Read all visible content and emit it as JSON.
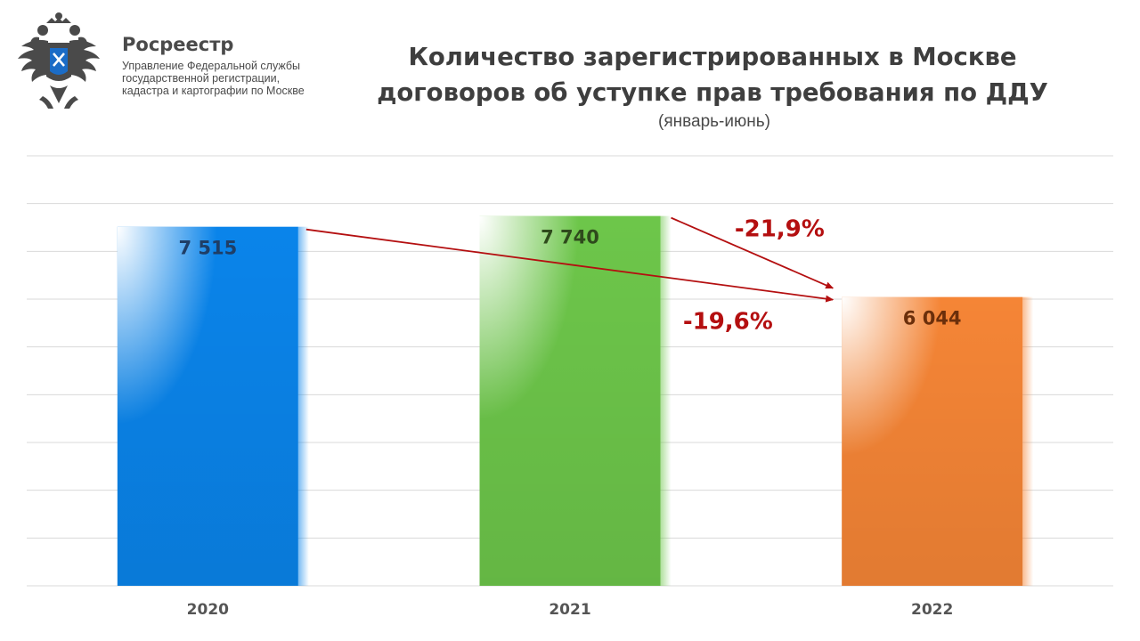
{
  "brand": {
    "name": "Росреестр",
    "subtitle_lines": [
      "Управление Федеральной службы",
      "государственной регистрации,",
      "кадастра и картографии по Москве"
    ],
    "logo_icon": "double-headed-eagle-emblem-icon"
  },
  "header": {
    "title_lines": [
      "Количество зарегистрированных в Москве",
      "договоров об уступке прав требования по ДДУ"
    ],
    "subtitle": "(январь-июнь)"
  },
  "chart_data": {
    "type": "bar",
    "categories": [
      "2020",
      "2021",
      "2022"
    ],
    "values": [
      7515,
      7740,
      6044
    ],
    "value_labels": [
      "7 515",
      "7 740",
      "6 044"
    ],
    "colors": [
      "#0a84ea",
      "#6dc64a",
      "#f58536"
    ],
    "label_colors": [
      "#1f3e66",
      "#2e4a1c",
      "#6b2f0b"
    ],
    "ylim": [
      0,
      9000
    ],
    "grid": true,
    "annotations": [
      {
        "text": "-21,9%",
        "from": "2021",
        "to": "2022",
        "color": "#b40f10"
      },
      {
        "text": "-19,6%",
        "from": "2020",
        "to": "2022",
        "color": "#b40f10"
      }
    ]
  }
}
